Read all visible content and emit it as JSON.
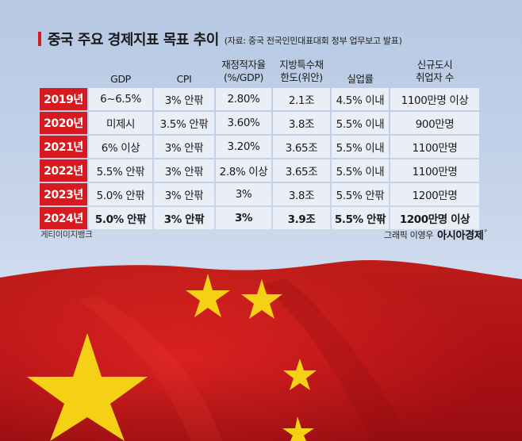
{
  "title": "중국 주요 경제지표 목표 추이",
  "source": "(자료: 중국 전국인민대표대회 정부 업무보고 발표)",
  "headers": {
    "gdp": "GDP",
    "cpi": "CPI",
    "deficit_line1": "재정적자율",
    "deficit_line2": "(%/GDP)",
    "bond_line1": "지방특수채",
    "bond_line2": "한도(위안)",
    "unemployment": "실업률",
    "jobs_line1": "신규도시",
    "jobs_line2": "취업자 수"
  },
  "rows": [
    {
      "year": "2019년",
      "gdp": "6~6.5%",
      "cpi": "3% 안팎",
      "deficit": "2.80%",
      "bond": "2.1조",
      "unemployment": "4.5% 이내",
      "jobs": "1100만명 이상"
    },
    {
      "year": "2020년",
      "gdp": "미제시",
      "cpi": "3.5% 안팎",
      "deficit": "3.60%",
      "bond": "3.8조",
      "unemployment": "5.5% 이내",
      "jobs": "900만명"
    },
    {
      "year": "2021년",
      "gdp": "6% 이상",
      "cpi": "3% 안팎",
      "deficit": "3.20%",
      "bond": "3.65조",
      "unemployment": "5.5% 이내",
      "jobs": "1100만명"
    },
    {
      "year": "2022년",
      "gdp": "5.5% 안팎",
      "cpi": "3% 안팎",
      "deficit": "2.8% 이상",
      "bond": "3.65조",
      "unemployment": "5.5% 이내",
      "jobs": "1100만명"
    },
    {
      "year": "2023년",
      "gdp": "5.0% 안팎",
      "cpi": "3% 안팎",
      "deficit": "3%",
      "bond": "3.8조",
      "unemployment": "5.5% 안팎",
      "jobs": "1200만명"
    },
    {
      "year": "2024년",
      "gdp": "5.0% 안팎",
      "cpi": "3% 안팎",
      "deficit": "3%",
      "bond": "3.9조",
      "unemployment": "5.5% 안팎",
      "jobs": "1200만명 이상"
    }
  ],
  "footer": {
    "photo_credit": "게티이미지뱅크",
    "graphic_credit": "그래픽 이영우",
    "brand": "아시아경제"
  },
  "colors": {
    "accent": "#d71920",
    "cell_bg": "#e9eef7",
    "flag_red": "#c8141b",
    "star_yellow": "#f5d116"
  },
  "icons": [
    "title-accent-bar",
    "china-flag-image",
    "brand-mark-icon"
  ]
}
